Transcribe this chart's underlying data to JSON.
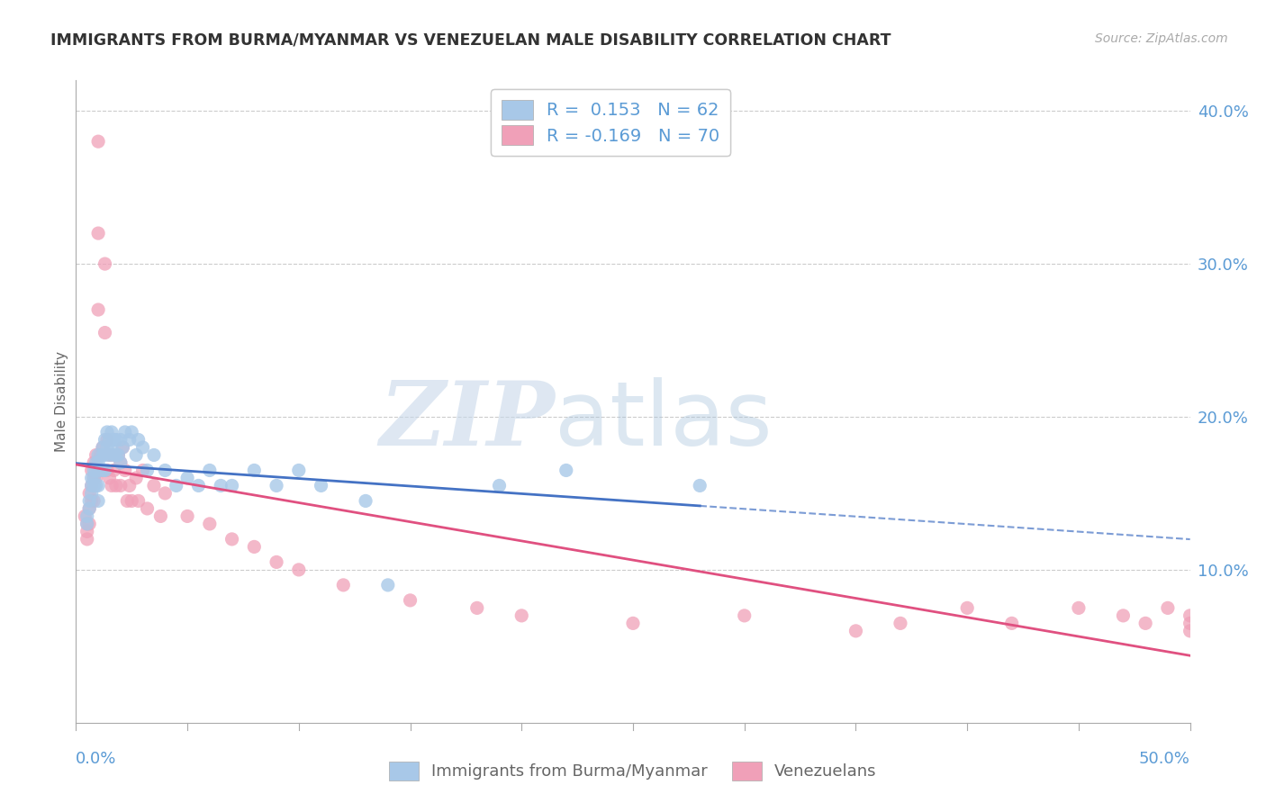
{
  "title": "IMMIGRANTS FROM BURMA/MYANMAR VS VENEZUELAN MALE DISABILITY CORRELATION CHART",
  "source": "Source: ZipAtlas.com",
  "ylabel": "Male Disability",
  "legend_label1": "Immigrants from Burma/Myanmar",
  "legend_label2": "Venezuelans",
  "r1": 0.153,
  "n1": 62,
  "r2": -0.169,
  "n2": 70,
  "color_blue": "#a8c8e8",
  "color_pink": "#f0a0b8",
  "color_blue_line": "#4472c4",
  "color_pink_line": "#e05080",
  "color_blue_text": "#5b9bd5",
  "xlim": [
    0.0,
    0.5
  ],
  "ylim": [
    0.0,
    0.42
  ],
  "yticks": [
    0.1,
    0.2,
    0.3,
    0.4
  ],
  "ytick_labels": [
    "10.0%",
    "20.0%",
    "30.0%",
    "40.0%"
  ],
  "watermark_zip": "ZIP",
  "watermark_atlas": "atlas",
  "blue_scatter_x": [
    0.005,
    0.005,
    0.006,
    0.006,
    0.007,
    0.007,
    0.007,
    0.008,
    0.008,
    0.008,
    0.009,
    0.009,
    0.009,
    0.01,
    0.01,
    0.01,
    0.01,
    0.01,
    0.012,
    0.012,
    0.012,
    0.013,
    0.013,
    0.013,
    0.014,
    0.014,
    0.015,
    0.015,
    0.016,
    0.016,
    0.017,
    0.017,
    0.018,
    0.018,
    0.019,
    0.02,
    0.02,
    0.021,
    0.022,
    0.024,
    0.025,
    0.027,
    0.028,
    0.03,
    0.032,
    0.035,
    0.04,
    0.045,
    0.05,
    0.055,
    0.06,
    0.065,
    0.07,
    0.08,
    0.09,
    0.1,
    0.11,
    0.13,
    0.14,
    0.19,
    0.22,
    0.28
  ],
  "blue_scatter_y": [
    0.135,
    0.13,
    0.145,
    0.14,
    0.16,
    0.155,
    0.15,
    0.165,
    0.16,
    0.155,
    0.17,
    0.165,
    0.155,
    0.175,
    0.17,
    0.165,
    0.155,
    0.145,
    0.18,
    0.175,
    0.165,
    0.185,
    0.175,
    0.165,
    0.19,
    0.18,
    0.185,
    0.175,
    0.19,
    0.18,
    0.185,
    0.175,
    0.185,
    0.175,
    0.175,
    0.185,
    0.17,
    0.18,
    0.19,
    0.185,
    0.19,
    0.175,
    0.185,
    0.18,
    0.165,
    0.175,
    0.165,
    0.155,
    0.16,
    0.155,
    0.165,
    0.155,
    0.155,
    0.165,
    0.155,
    0.165,
    0.155,
    0.145,
    0.09,
    0.155,
    0.165,
    0.155
  ],
  "pink_scatter_x": [
    0.004,
    0.005,
    0.005,
    0.005,
    0.006,
    0.006,
    0.006,
    0.007,
    0.007,
    0.007,
    0.008,
    0.008,
    0.008,
    0.009,
    0.009,
    0.01,
    0.01,
    0.01,
    0.011,
    0.011,
    0.012,
    0.012,
    0.013,
    0.013,
    0.014,
    0.014,
    0.015,
    0.015,
    0.016,
    0.016,
    0.017,
    0.018,
    0.019,
    0.02,
    0.02,
    0.021,
    0.022,
    0.023,
    0.024,
    0.025,
    0.027,
    0.028,
    0.03,
    0.032,
    0.035,
    0.038,
    0.04,
    0.05,
    0.06,
    0.07,
    0.08,
    0.09,
    0.1,
    0.12,
    0.15,
    0.18,
    0.2,
    0.25,
    0.3,
    0.35,
    0.37,
    0.4,
    0.42,
    0.45,
    0.47,
    0.48,
    0.49,
    0.5,
    0.5,
    0.5
  ],
  "pink_scatter_y": [
    0.135,
    0.13,
    0.125,
    0.12,
    0.15,
    0.14,
    0.13,
    0.165,
    0.155,
    0.145,
    0.17,
    0.16,
    0.145,
    0.175,
    0.16,
    0.38,
    0.32,
    0.27,
    0.175,
    0.165,
    0.18,
    0.165,
    0.3,
    0.255,
    0.185,
    0.165,
    0.175,
    0.16,
    0.175,
    0.155,
    0.165,
    0.155,
    0.175,
    0.17,
    0.155,
    0.18,
    0.165,
    0.145,
    0.155,
    0.145,
    0.16,
    0.145,
    0.165,
    0.14,
    0.155,
    0.135,
    0.15,
    0.135,
    0.13,
    0.12,
    0.115,
    0.105,
    0.1,
    0.09,
    0.08,
    0.075,
    0.07,
    0.065,
    0.07,
    0.06,
    0.065,
    0.075,
    0.065,
    0.075,
    0.07,
    0.065,
    0.075,
    0.07,
    0.065,
    0.06
  ]
}
